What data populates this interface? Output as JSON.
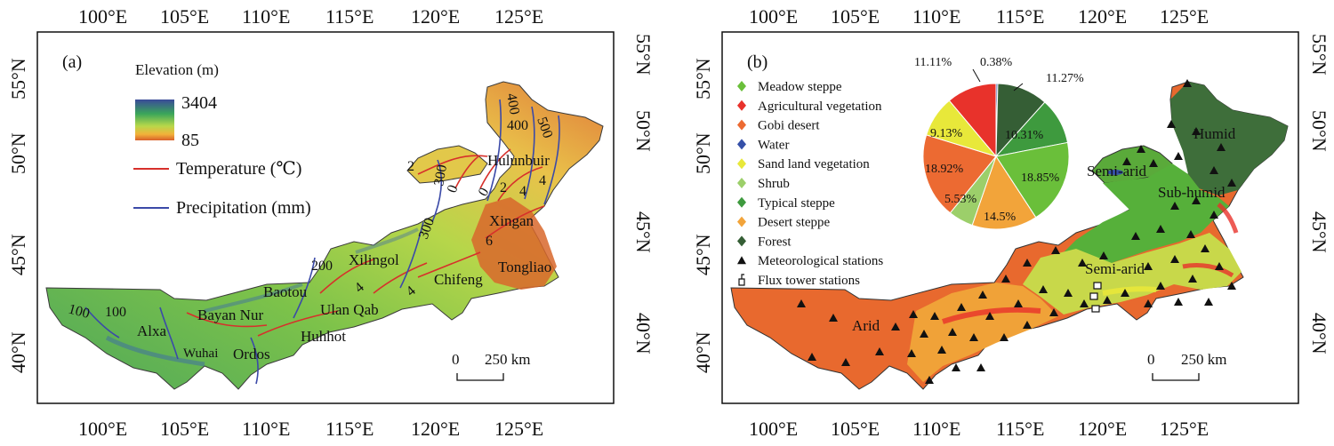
{
  "panel_a": {
    "tag": "(a)",
    "legend": {
      "elevation_title": "Elevation (m)",
      "elev_max": "3404",
      "elev_min": "85",
      "temp_label": "Temperature (℃)",
      "precip_label": "Precipitation (mm)",
      "temp_color": "#d7302b",
      "precip_color": "#3b4aa8"
    },
    "places": [
      "Hulunbuir",
      "Xingan",
      "Xilingol",
      "Tongliao",
      "Chifeng",
      "Baotou",
      "Ulan Qab",
      "Bayan Nur",
      "Huhhot",
      "Alxa",
      "Wuhai",
      "Ordos"
    ],
    "contour_labels": [
      "400",
      "400",
      "500",
      "300",
      "2",
      "0",
      "0",
      "2",
      "4",
      "4",
      "300",
      "6",
      "200",
      "4",
      "4",
      "100",
      "100"
    ],
    "scale": {
      "zero": "0",
      "label": "250 km"
    }
  },
  "panel_b": {
    "tag": "(b)",
    "legend": [
      {
        "label": "Meadow steppe",
        "color": "#6abf3a",
        "marker": "diamond"
      },
      {
        "label": "Agricultural vegetation",
        "color": "#e8322b",
        "marker": "diamond"
      },
      {
        "label": "Gobi desert",
        "color": "#ec6a32",
        "marker": "diamond"
      },
      {
        "label": "Water",
        "color": "#3550a8",
        "marker": "diamond"
      },
      {
        "label": "Sand land vegetation",
        "color": "#e8e83a",
        "marker": "diamond"
      },
      {
        "label": "Shrub",
        "color": "#9ccf6a",
        "marker": "diamond"
      },
      {
        "label": "Typical steppe",
        "color": "#3e9a3e",
        "marker": "diamond"
      },
      {
        "label": "Desert steppe",
        "color": "#f2a43a",
        "marker": "diamond"
      },
      {
        "label": "Forest",
        "color": "#355e35",
        "marker": "diamond"
      },
      {
        "label": "Meteorological stations",
        "color": "#111111",
        "marker": "triangle"
      },
      {
        "label": "Flux tower stations",
        "color": "#111111",
        "marker": "tower"
      }
    ],
    "zones": [
      "Humid",
      "Semi-arid",
      "Sub-humid",
      "Semi-arid",
      "Arid"
    ],
    "scale": {
      "zero": "0",
      "label": "250 km"
    }
  },
  "axes": {
    "x_ticks": [
      "100°E",
      "105°E",
      "110°E",
      "115°E",
      "120°E",
      "125°E"
    ],
    "y_ticks": [
      "55°N",
      "50°N",
      "45°N",
      "40°N"
    ]
  },
  "chart_data": {
    "type": "pie",
    "categories": [
      "Agricultural vegetation",
      "Water",
      "Forest",
      "Typical steppe",
      "Meadow steppe",
      "Desert steppe",
      "Shrub",
      "Gobi desert",
      "Sand land vegetation"
    ],
    "values": [
      11.11,
      0.38,
      11.27,
      10.31,
      18.85,
      14.5,
      5.53,
      18.92,
      9.13
    ],
    "value_labels": [
      "11.11%",
      "0.38%",
      "11.27%",
      "10.31%",
      "18.85%",
      "14.5%",
      "5.53%",
      "18.92%",
      "9.13%"
    ],
    "colors": [
      "#e8322b",
      "#3550a8",
      "#355e35",
      "#3e9a3e",
      "#6abf3a",
      "#f2a43a",
      "#9ccf6a",
      "#ec6a32",
      "#e8e83a"
    ]
  }
}
